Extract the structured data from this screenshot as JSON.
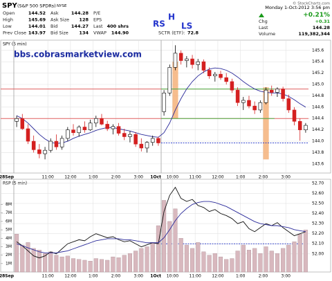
{
  "header": {
    "symbol": "SPY",
    "name": "(S&P 500 SPDRs)",
    "exchange": "NYSE",
    "credit": "© StockCharts.com",
    "col1": [
      {
        "label": "Open",
        "value": "144.52"
      },
      {
        "label": "High",
        "value": "145.69"
      },
      {
        "label": "Low",
        "value": "144.01"
      },
      {
        "label": "Prev Close",
        "value": "143.97"
      }
    ],
    "col2": [
      {
        "label": "Ask",
        "value": "144.28"
      },
      {
        "label": "Ask Size",
        "value": "128"
      },
      {
        "label": "Bid",
        "value": "144.27"
      },
      {
        "label": "Bid Size",
        "value": "134"
      }
    ],
    "col3": [
      {
        "label": "P/E"
      },
      {
        "label": "EPS"
      },
      {
        "label": "Last",
        "value": "400 shrs"
      },
      {
        "label": "VWAP",
        "value": "144.90"
      }
    ],
    "sctr": {
      "label": "SCTR (ETF):",
      "value": "72.8"
    },
    "datetime": "Monday 1-Oct-2012 3:56 pm",
    "change_pct": "+0.21%",
    "right": [
      {
        "label": "Chg",
        "value": "+0.31"
      },
      {
        "label": "Last",
        "value": "144.28"
      },
      {
        "label": "Volume",
        "value": "119,382,344"
      }
    ],
    "annotations": [
      "RS",
      "H",
      "LS"
    ],
    "site": "bbs.cobrasmarketview.com"
  },
  "chart_data": [
    {
      "type": "candlestick",
      "title": "SPY (5 min)",
      "categories": [
        "28Sep",
        null,
        null,
        null,
        null,
        null,
        "11:00",
        null,
        null,
        null,
        "12:00",
        null,
        null,
        null,
        "1:00",
        null,
        null,
        null,
        "2:00",
        null,
        null,
        null,
        "3:00",
        null,
        null,
        null,
        "1Oct",
        null,
        "10:00",
        null,
        null,
        null,
        "11:00",
        null,
        null,
        null,
        "12:00",
        null,
        null,
        null,
        "1:00",
        null,
        null,
        null,
        "2:00",
        null,
        null,
        null,
        "3:00",
        null,
        null,
        null
      ],
      "candles": {
        "open": [
          144.35,
          144.4,
          144.22,
          144.0,
          143.85,
          143.78,
          143.84,
          144.0,
          143.9,
          144.05,
          144.2,
          144.15,
          144.25,
          144.2,
          144.32,
          144.4,
          144.3,
          144.22,
          144.26,
          144.14,
          144.08,
          144.12,
          143.95,
          143.88,
          143.98,
          144.05,
          144.52,
          144.85,
          145.3,
          145.55,
          145.42,
          145.45,
          145.35,
          145.4,
          145.25,
          145.15,
          145.18,
          145.12,
          145.05,
          144.9,
          144.68,
          144.72,
          144.62,
          144.55,
          144.68,
          144.9,
          144.86,
          144.92,
          144.75,
          144.55,
          144.35,
          144.2
        ],
        "high": [
          144.45,
          144.48,
          144.3,
          144.1,
          143.95,
          143.9,
          144.05,
          144.12,
          144.1,
          144.25,
          144.3,
          144.28,
          144.35,
          144.38,
          144.45,
          144.48,
          144.36,
          144.3,
          144.32,
          144.22,
          144.18,
          144.16,
          144.05,
          144.0,
          144.1,
          144.08,
          144.9,
          145.35,
          145.69,
          145.6,
          145.5,
          145.52,
          145.45,
          145.44,
          145.3,
          145.22,
          145.24,
          145.2,
          145.1,
          144.95,
          144.78,
          144.8,
          144.7,
          144.72,
          144.95,
          144.98,
          144.95,
          144.96,
          144.82,
          144.6,
          144.4,
          144.32
        ],
        "low": [
          144.25,
          144.2,
          143.95,
          143.8,
          143.7,
          143.68,
          143.8,
          143.85,
          143.85,
          144.0,
          144.1,
          144.08,
          144.15,
          144.18,
          144.25,
          144.28,
          144.18,
          144.12,
          144.1,
          144.02,
          143.98,
          143.9,
          143.82,
          143.8,
          143.92,
          143.92,
          144.45,
          144.8,
          145.25,
          145.35,
          145.3,
          145.28,
          145.25,
          145.2,
          145.1,
          145.05,
          145.08,
          145.0,
          144.85,
          144.62,
          144.55,
          144.58,
          144.48,
          144.5,
          144.65,
          144.8,
          144.78,
          144.7,
          144.5,
          144.28,
          144.01,
          144.15
        ],
        "close": [
          144.4,
          144.22,
          144.0,
          143.85,
          143.78,
          143.84,
          144.0,
          143.9,
          144.05,
          144.2,
          144.15,
          144.25,
          144.2,
          144.32,
          144.4,
          144.3,
          144.22,
          144.26,
          144.14,
          144.08,
          144.12,
          143.95,
          143.88,
          143.98,
          144.05,
          143.97,
          144.85,
          145.3,
          145.55,
          145.42,
          145.45,
          145.35,
          145.4,
          145.25,
          145.15,
          145.18,
          145.12,
          145.05,
          144.9,
          144.68,
          144.72,
          144.62,
          144.55,
          144.68,
          144.9,
          144.86,
          144.92,
          144.75,
          144.55,
          144.35,
          144.2,
          144.28
        ]
      },
      "up_color": "#ffffff",
      "down_color": "#d42020",
      "series": [
        {
          "kind": "line",
          "color": "#2a2a9a",
          "values": [
            144.45,
            144.4,
            144.32,
            144.22,
            144.12,
            144.04,
            143.98,
            143.96,
            143.97,
            144.0,
            144.05,
            144.09,
            144.12,
            144.15,
            144.19,
            144.22,
            144.24,
            144.24,
            144.22,
            144.2,
            144.18,
            144.15,
            144.12,
            144.1,
            144.08,
            144.07,
            144.15,
            144.32,
            144.55,
            144.75,
            144.92,
            145.05,
            145.15,
            145.22,
            145.27,
            145.29,
            145.28,
            145.25,
            145.2,
            145.13,
            145.05,
            144.98,
            144.92,
            144.88,
            144.86,
            144.85,
            144.85,
            144.83,
            144.79,
            144.73,
            144.66,
            144.6
          ]
        }
      ],
      "levels": [
        {
          "value": 144.92,
          "color": "#e06060"
        },
        {
          "value": 144.4,
          "color": "#e06060"
        },
        {
          "value": 144.92,
          "color": "#4cb84c",
          "from": 26,
          "to": 45
        },
        {
          "value": 144.4,
          "color": "#4cb84c",
          "from": 26,
          "to": 45
        },
        {
          "value": 143.97,
          "color": "#3344cc",
          "style": "dashed",
          "from": 26
        }
      ],
      "highlights": [
        {
          "from": 28,
          "to": 28,
          "low": 144.4,
          "high": 145.4,
          "color": "#f5b27a"
        },
        {
          "from": 44,
          "to": 44,
          "low": 143.68,
          "high": 144.95,
          "color": "#f5b27a"
        }
      ],
      "ylim": [
        143.44,
        145.78
      ],
      "yticks": [
        143.6,
        143.8,
        {
          "value": 144,
          "label": "144.0"
        },
        144.2,
        144.4,
        144.6,
        144.8,
        {
          "value": 145,
          "label": "145.0"
        },
        145.2,
        145.4,
        145.6
      ],
      "grid": true
    },
    {
      "type": "combo",
      "title": "RSP (5 min)",
      "categories": [
        "28Sep",
        null,
        null,
        null,
        null,
        null,
        "11:00",
        null,
        null,
        null,
        "12:00",
        null,
        null,
        null,
        "1:00",
        null,
        null,
        null,
        "2:00",
        null,
        null,
        null,
        "3:00",
        null,
        null,
        null,
        "1Oct",
        null,
        "10:00",
        null,
        null,
        null,
        "11:00",
        null,
        null,
        null,
        "12:00",
        null,
        null,
        null,
        "1:00",
        null,
        null,
        null,
        "2:00",
        null,
        null,
        null,
        "3:00",
        null,
        null,
        null
      ],
      "series": [
        {
          "kind": "bar",
          "axis": "y2",
          "color": "#d8b8be",
          "values": [
            4500000,
            3200000,
            3500000,
            2800000,
            2600000,
            2200000,
            2400000,
            2000000,
            1800000,
            1900000,
            1600000,
            1500000,
            1400000,
            1300000,
            1600000,
            1500000,
            1400000,
            1800000,
            1700000,
            2000000,
            2200000,
            2500000,
            2800000,
            3000000,
            3500000,
            5500000,
            8500000,
            6000000,
            7500000,
            4000000,
            3200000,
            2800000,
            3500000,
            2400000,
            2000000,
            2200000,
            1800000,
            1500000,
            1600000,
            2500000,
            3200000,
            2600000,
            2800000,
            2200000,
            3000000,
            2500000,
            2200000,
            2800000,
            3200000,
            3600000,
            4500000,
            5000000
          ]
        },
        {
          "kind": "line",
          "color": "#111111",
          "values": [
            52.12,
            52.08,
            52.03,
            51.98,
            51.96,
            51.98,
            52.02,
            52.0,
            52.05,
            52.1,
            52.12,
            52.14,
            52.13,
            52.17,
            52.2,
            52.18,
            52.16,
            52.17,
            52.14,
            52.12,
            52.13,
            52.1,
            52.07,
            52.09,
            52.11,
            52.1,
            52.42,
            52.58,
            52.66,
            52.55,
            52.52,
            52.54,
            52.48,
            52.46,
            52.42,
            52.44,
            52.4,
            52.38,
            52.35,
            52.3,
            52.32,
            52.25,
            52.22,
            52.26,
            52.3,
            52.28,
            52.31,
            52.26,
            52.22,
            52.18,
            52.2,
            52.22
          ]
        },
        {
          "kind": "line",
          "color": "#2a2a9a",
          "values": [
            52.1,
            52.08,
            52.06,
            52.04,
            52.02,
            52.01,
            52.01,
            52.01,
            52.02,
            52.03,
            52.05,
            52.07,
            52.09,
            52.11,
            52.13,
            52.14,
            52.15,
            52.15,
            52.15,
            52.14,
            52.14,
            52.13,
            52.12,
            52.11,
            52.11,
            52.11,
            52.16,
            52.24,
            52.33,
            52.4,
            52.45,
            52.49,
            52.51,
            52.52,
            52.52,
            52.51,
            52.49,
            52.47,
            52.44,
            52.41,
            52.38,
            52.35,
            52.32,
            52.3,
            52.29,
            52.28,
            52.28,
            52.27,
            52.26,
            52.24,
            52.23,
            52.22
          ]
        }
      ],
      "levels": [
        {
          "value": 52.1,
          "color": "#3344cc",
          "style": "dashed",
          "from": 26
        }
      ],
      "ylim": [
        51.82,
        52.74
      ],
      "yticks": [
        {
          "value": 52,
          "label": "52.00"
        },
        {
          "value": 52.1,
          "label": "52.10"
        },
        {
          "value": 52.2,
          "label": "52.20"
        },
        {
          "value": 52.3,
          "label": "52.30"
        },
        {
          "value": 52.4,
          "label": "52.40"
        },
        {
          "value": 52.5,
          "label": "52.50"
        },
        {
          "value": 52.6,
          "label": "52.60"
        },
        {
          "value": 52.7,
          "label": "52.70"
        }
      ],
      "y2lim": [
        0,
        11000000
      ],
      "y2ticks": [
        {
          "value": 1000000,
          "label": "1M"
        },
        {
          "value": 2000000,
          "label": "2M"
        },
        {
          "value": 3000000,
          "label": "3M"
        },
        {
          "value": 4000000,
          "label": "4M"
        },
        {
          "value": 5000000,
          "label": "5M"
        },
        {
          "value": 6000000,
          "label": "6M"
        },
        {
          "value": 7000000,
          "label": "7M"
        },
        {
          "value": 8000000,
          "label": "8M"
        }
      ],
      "grid": true
    }
  ]
}
